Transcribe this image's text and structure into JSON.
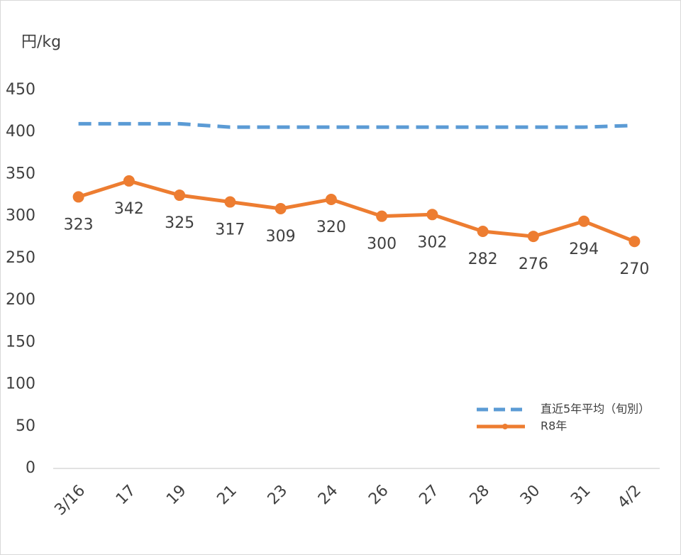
{
  "chart_data": {
    "type": "line",
    "y_label": "円/kg",
    "categories": [
      "3/16",
      "17",
      "19",
      "21",
      "23",
      "24",
      "26",
      "27",
      "28",
      "30",
      "31",
      "4/2"
    ],
    "series": [
      {
        "name": "直近5年平均（旬別）",
        "color": "#5b9bd5",
        "dashed": true,
        "markers": false,
        "values": [
          410,
          410,
          410,
          406,
          406,
          406,
          406,
          406,
          406,
          406,
          406,
          408
        ]
      },
      {
        "name": "R8年",
        "color": "#ed7d31",
        "dashed": false,
        "markers": true,
        "data_labels": true,
        "values": [
          323,
          342,
          325,
          317,
          309,
          320,
          300,
          302,
          282,
          276,
          294,
          270
        ]
      }
    ],
    "ylim": [
      0,
      450
    ],
    "yticks": [
      0,
      50,
      100,
      150,
      200,
      250,
      300,
      350,
      400,
      450
    ],
    "grid": false,
    "legend": "lower right"
  }
}
